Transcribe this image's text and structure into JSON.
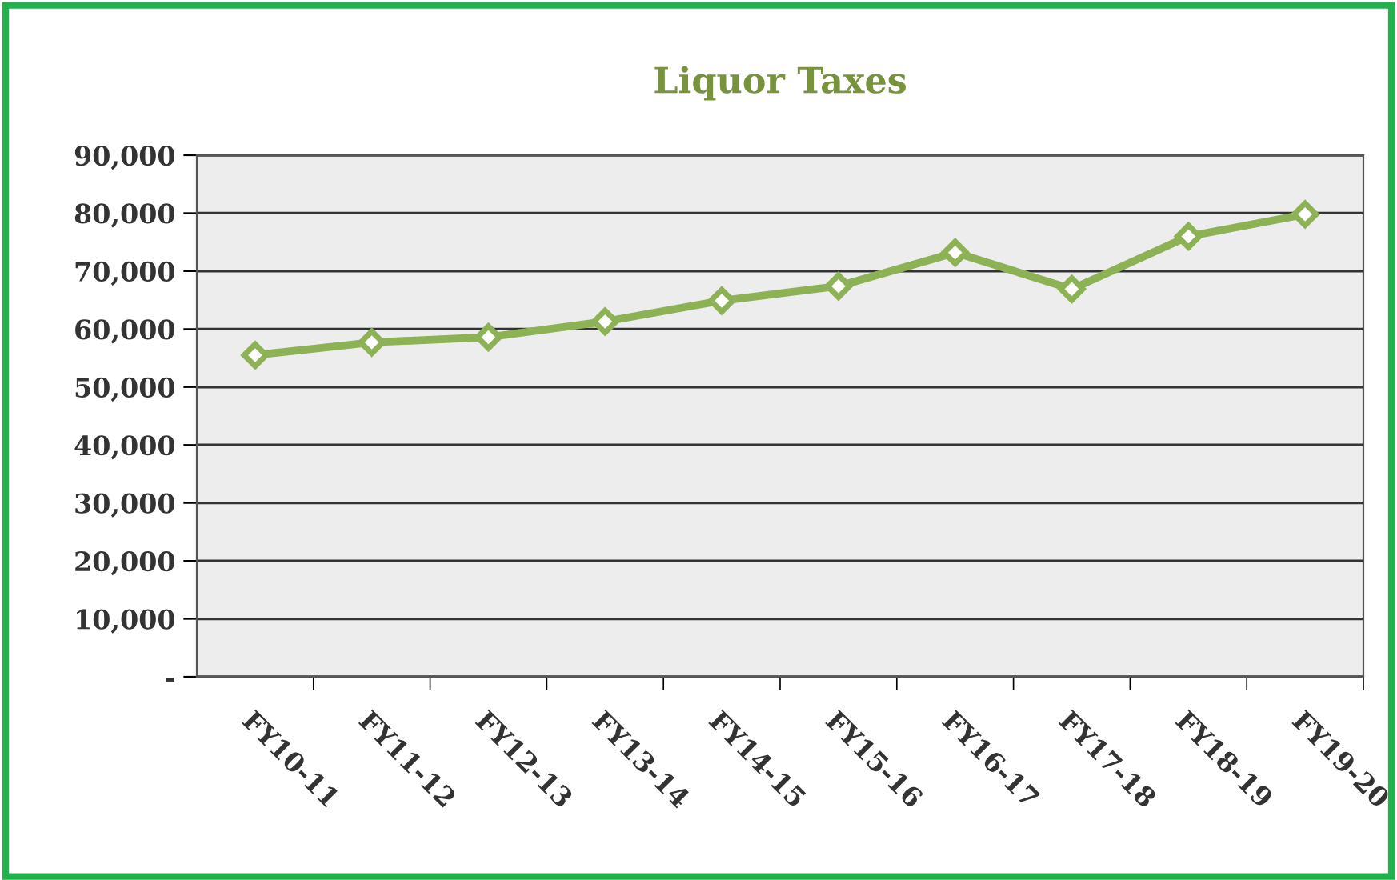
{
  "chart_data": {
    "type": "line",
    "title": "Liquor Taxes",
    "categories": [
      "FY10-11",
      "FY11-12",
      "FY12-13",
      "FY13-14",
      "FY14-15",
      "FY15-16",
      "FY16-17",
      "FY17-18",
      "FY18-19",
      "FY19-20"
    ],
    "series": [
      {
        "color": "#8db255",
        "values": [
          55500,
          57700,
          58600,
          61300,
          64900,
          67400,
          73200,
          66900,
          76000,
          79800
        ]
      }
    ],
    "ylim": [
      0,
      90000
    ],
    "yticks": [
      {
        "value": 0,
        "label": "-"
      },
      {
        "value": 10000,
        "label": "10,000"
      },
      {
        "value": 20000,
        "label": "20,000"
      },
      {
        "value": 30000,
        "label": "30,000"
      },
      {
        "value": 40000,
        "label": "40,000"
      },
      {
        "value": 50000,
        "label": "50,000"
      },
      {
        "value": 60000,
        "label": "60,000"
      },
      {
        "value": 70000,
        "label": "70,000"
      },
      {
        "value": 80000,
        "label": "80,000"
      },
      {
        "value": 90000,
        "label": "90,000"
      }
    ],
    "grid": "y",
    "marker": "diamond",
    "line_style": "solid"
  }
}
